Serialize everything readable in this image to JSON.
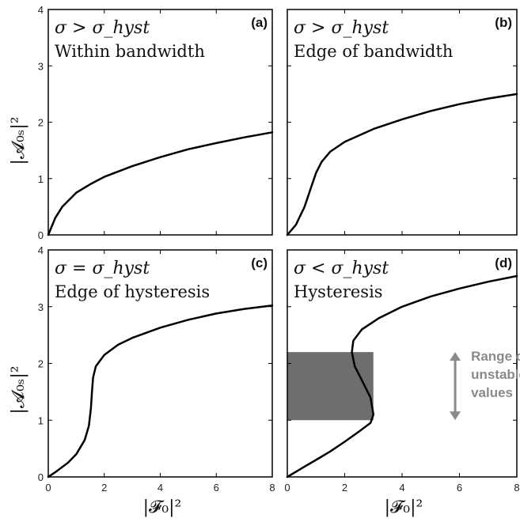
{
  "figure": {
    "xlabel": "|𝓕₀|²",
    "ylabel": "|𝓐₀ₛ|²",
    "colors": {
      "curve": "#000000",
      "band": "#6e6e6e",
      "annotation": "#8a8a8a"
    }
  },
  "chart_data": [
    {
      "type": "line",
      "panel_label": "(a)",
      "condition": "σ > σ_hyst",
      "description": "Within bandwidth",
      "xlim": [
        0,
        8
      ],
      "ylim": [
        0,
        4
      ],
      "xticks": [
        0,
        2,
        4,
        6,
        8
      ],
      "yticks": [
        0,
        1,
        2,
        3,
        4
      ],
      "series": [
        {
          "x": [
            0,
            0.1,
            0.25,
            0.5,
            1,
            1.5,
            2,
            3,
            4,
            5,
            6,
            7,
            8
          ],
          "y": [
            0,
            0.12,
            0.3,
            0.5,
            0.75,
            0.9,
            1.03,
            1.22,
            1.38,
            1.52,
            1.63,
            1.73,
            1.82
          ]
        }
      ]
    },
    {
      "type": "line",
      "panel_label": "(b)",
      "condition": "σ > σ_hyst",
      "description": "Edge of bandwidth",
      "xlim": [
        0,
        8
      ],
      "ylim": [
        0,
        4
      ],
      "xticks": [
        0,
        2,
        4,
        6,
        8
      ],
      "yticks": [
        0,
        1,
        2,
        3,
        4
      ],
      "series": [
        {
          "x": [
            0,
            0.3,
            0.6,
            0.8,
            1.0,
            1.2,
            1.5,
            2,
            3,
            4,
            5,
            6,
            7,
            8
          ],
          "y": [
            0,
            0.18,
            0.5,
            0.8,
            1.1,
            1.3,
            1.48,
            1.65,
            1.88,
            2.05,
            2.2,
            2.32,
            2.42,
            2.5
          ]
        }
      ]
    },
    {
      "type": "line",
      "panel_label": "(c)",
      "condition": "σ = σ_hyst",
      "description": "Edge of hysteresis",
      "xlim": [
        0,
        8
      ],
      "ylim": [
        0,
        4
      ],
      "xticks": [
        0,
        2,
        4,
        6,
        8
      ],
      "yticks": [
        0,
        1,
        2,
        3,
        4
      ],
      "series": [
        {
          "x": [
            0,
            0.3,
            0.7,
            1.0,
            1.3,
            1.45,
            1.52,
            1.56,
            1.6,
            1.7,
            2,
            2.5,
            3,
            4,
            5,
            6,
            7,
            8
          ],
          "y": [
            0,
            0.1,
            0.25,
            0.4,
            0.65,
            0.9,
            1.2,
            1.5,
            1.75,
            1.95,
            2.15,
            2.33,
            2.45,
            2.63,
            2.77,
            2.88,
            2.96,
            3.02
          ]
        }
      ]
    },
    {
      "type": "line",
      "panel_label": "(d)",
      "condition": "σ < σ_hyst",
      "description": "Hysteresis",
      "xlim": [
        0,
        8
      ],
      "ylim": [
        0,
        4
      ],
      "xticks": [
        0,
        2,
        4,
        6,
        8
      ],
      "yticks": [
        0,
        1,
        2,
        3,
        4
      ],
      "series": [
        {
          "x": [
            0,
            0.5,
            1.0,
            1.5,
            2.0,
            2.5,
            2.9,
            3.0,
            2.9,
            2.6,
            2.35,
            2.25,
            2.3,
            2.6,
            3.2,
            4,
            5,
            6,
            7,
            8
          ],
          "y": [
            0,
            0.15,
            0.3,
            0.45,
            0.62,
            0.8,
            0.95,
            1.1,
            1.4,
            1.7,
            1.95,
            2.2,
            2.4,
            2.6,
            2.8,
            3.0,
            3.18,
            3.32,
            3.44,
            3.54
          ]
        }
      ],
      "shaded_band": {
        "x": [
          0,
          3.0
        ],
        "y": [
          1.0,
          2.2
        ]
      },
      "annotation": {
        "lines": [
          "Range of",
          "unstable",
          "values"
        ],
        "arrow_y": [
          1.0,
          2.2
        ]
      }
    }
  ]
}
